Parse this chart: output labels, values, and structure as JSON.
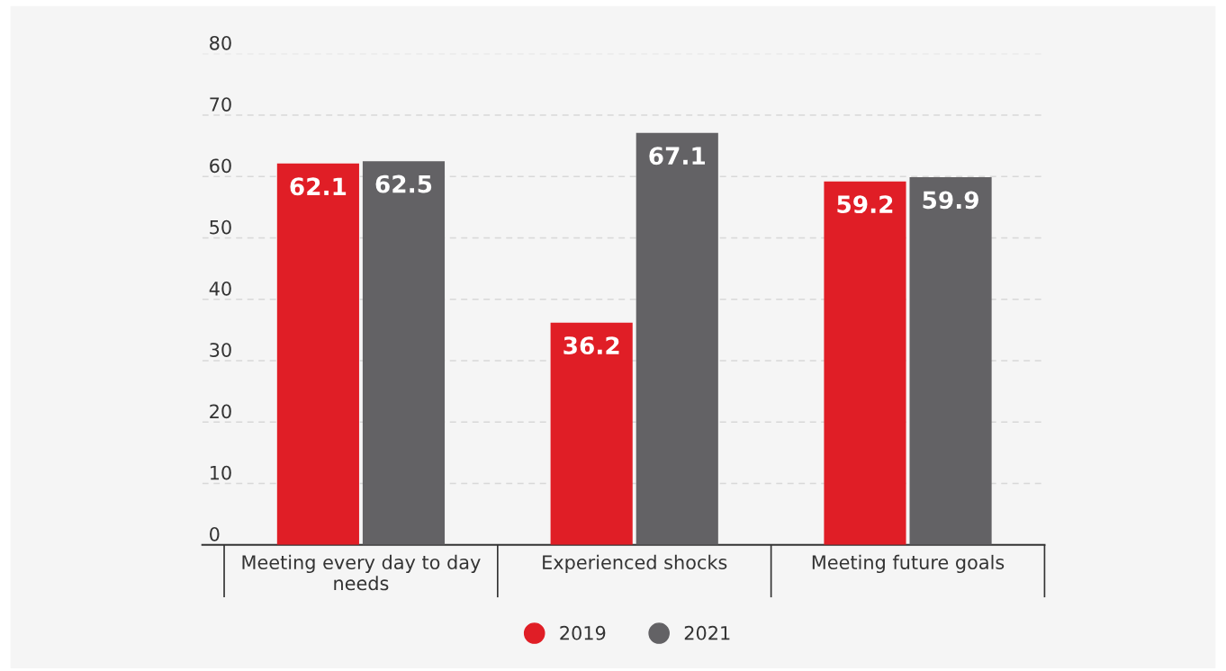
{
  "chart_data": {
    "type": "bar",
    "categories": [
      "Meeting every day to day needs",
      "Experienced shocks",
      "Meeting future goals"
    ],
    "series": [
      {
        "name": "2019",
        "color": "#e01e26",
        "values": [
          62.1,
          36.2,
          59.2
        ]
      },
      {
        "name": "2021",
        "color": "#636265",
        "values": [
          62.5,
          67.1,
          59.9
        ]
      }
    ],
    "ylim": [
      0,
      80
    ],
    "yticks": [
      0,
      10,
      20,
      30,
      40,
      50,
      60,
      70,
      80
    ],
    "grid": "y",
    "legend": "bottom",
    "data_labels": true
  }
}
